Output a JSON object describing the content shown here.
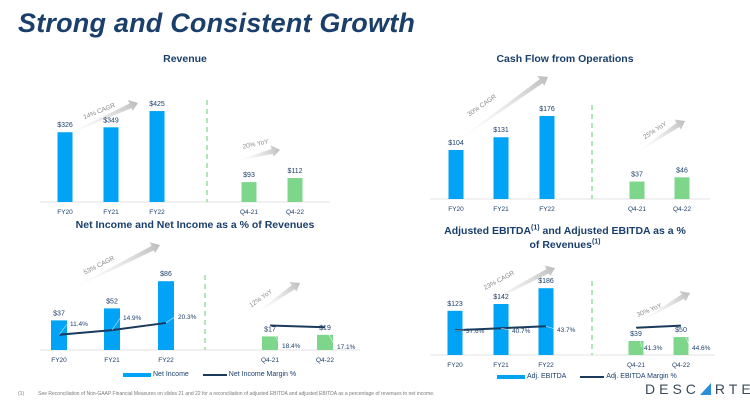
{
  "page": {
    "title": "Strong and Consistent Growth",
    "footnote_marker": "(1)",
    "footnote": "See Reconciliation of Non-GAAP Financial Measures on slides 21 and 22 for a reconciliation of adjusted EBITDA and adjusted EBITDA as a percentage of revenues to net income.",
    "logo_left": "DESC",
    "logo_right": "RTES",
    "logo_tm": "™"
  },
  "colors": {
    "annual_bar": "#00a3f5",
    "quarter_bar": "#7dd68a",
    "line": "#1b3a5c",
    "text": "#1b3f6b",
    "divider": "#7dd68a"
  },
  "chart_data": [
    {
      "id": "revenue",
      "type": "bar",
      "title": "Revenue",
      "categories": [
        "FY20",
        "FY21",
        "FY22",
        "Q4-21",
        "Q4-22"
      ],
      "values": [
        326,
        349,
        425,
        93,
        112
      ],
      "value_labels": [
        "$326",
        "$349",
        "$425",
        "$93",
        "$112"
      ],
      "annual_growth_label": "14% CAGR",
      "quarter_growth_label": "20% YoY",
      "ylim": [
        0,
        500
      ]
    },
    {
      "id": "cash-flow",
      "type": "bar",
      "title": "Cash Flow from Operations",
      "categories": [
        "FY20",
        "FY21",
        "FY22",
        "Q4-21",
        "Q4-22"
      ],
      "values": [
        104,
        131,
        176,
        37,
        46
      ],
      "value_labels": [
        "$104",
        "$131",
        "$176",
        "$37",
        "$46"
      ],
      "annual_growth_label": "30% CAGR",
      "quarter_growth_label": "25% YoY",
      "ylim": [
        0,
        210
      ]
    },
    {
      "id": "net-income",
      "type": "bar",
      "title": "Net Income and Net Income as a % of Revenues",
      "categories": [
        "FY20",
        "FY21",
        "FY22",
        "Q4-21",
        "Q4-22"
      ],
      "values": [
        37,
        52,
        86,
        17,
        19
      ],
      "value_labels": [
        "$37",
        "$52",
        "$86",
        "$17",
        "$19"
      ],
      "line_values": [
        11.4,
        14.9,
        20.3,
        18.4,
        17.1
      ],
      "line_labels": [
        "11.4%",
        "14.9%",
        "20.3%",
        "18.4%",
        "17.1%"
      ],
      "annual_growth_label": "53% CAGR",
      "quarter_growth_label": "12% YoY",
      "legend": [
        "Net Income",
        "Net Income Margin %"
      ],
      "ylim": [
        0,
        100
      ]
    },
    {
      "id": "adj-ebitda",
      "type": "bar",
      "title": "Adjusted EBITDA",
      "title_sup": "(1)",
      "title_mid": " and Adjusted EBITDA as a %",
      "title_line2": "of Revenues",
      "title_sup2": "(1)",
      "categories": [
        "FY20",
        "FY21",
        "FY22",
        "Q4-21",
        "Q4-22"
      ],
      "values": [
        123,
        142,
        186,
        39,
        50
      ],
      "value_labels": [
        "$123",
        "$142",
        "$186",
        "$39",
        "$50"
      ],
      "line_values": [
        37.6,
        40.7,
        43.7,
        41.3,
        44.6
      ],
      "line_labels": [
        "37.6%",
        "40.7%",
        "43.7%",
        "41.3%",
        "44.6%"
      ],
      "annual_growth_label": "23% CAGR",
      "quarter_growth_label": "30% YoY",
      "legend": [
        "Adj. EBITDA",
        "Adj. EBITDA Margin %"
      ],
      "ylim": [
        0,
        220
      ]
    }
  ]
}
